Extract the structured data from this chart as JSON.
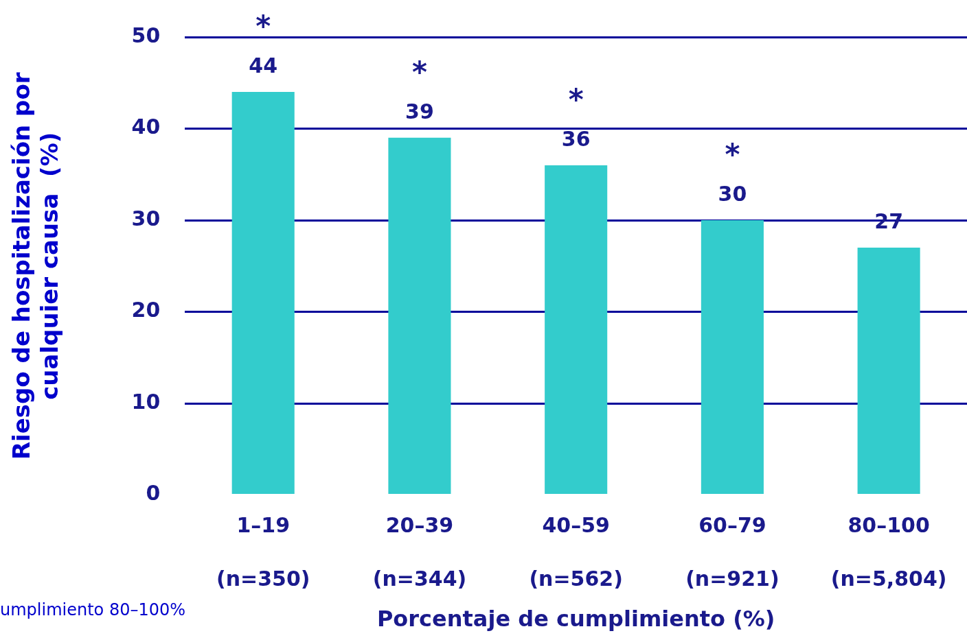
{
  "chart_data": {
    "type": "bar",
    "categories": [
      "1–19\n(n=350)",
      "20–39\n(n=344)",
      "40–59\n(n=562)",
      "60–79\n(n=921)",
      "80–100\n(n=5,804)"
    ],
    "values": [
      44,
      39,
      36,
      30,
      27
    ],
    "color": "#33cccc",
    "data_labels": true,
    "ylim": [
      0,
      50
    ],
    "yticks": [
      0,
      10,
      20,
      30,
      40,
      50
    ],
    "grid": "y",
    "legend": false,
    "xlabel": "Porcentaje de cumplimiento (%)",
    "ylabel": "Riesgo de hospitalización por\ncualquier causa  (%)",
    "annotations": [
      "*",
      "*",
      "*",
      "*",
      "umplimiento 80–100%"
    ]
  }
}
